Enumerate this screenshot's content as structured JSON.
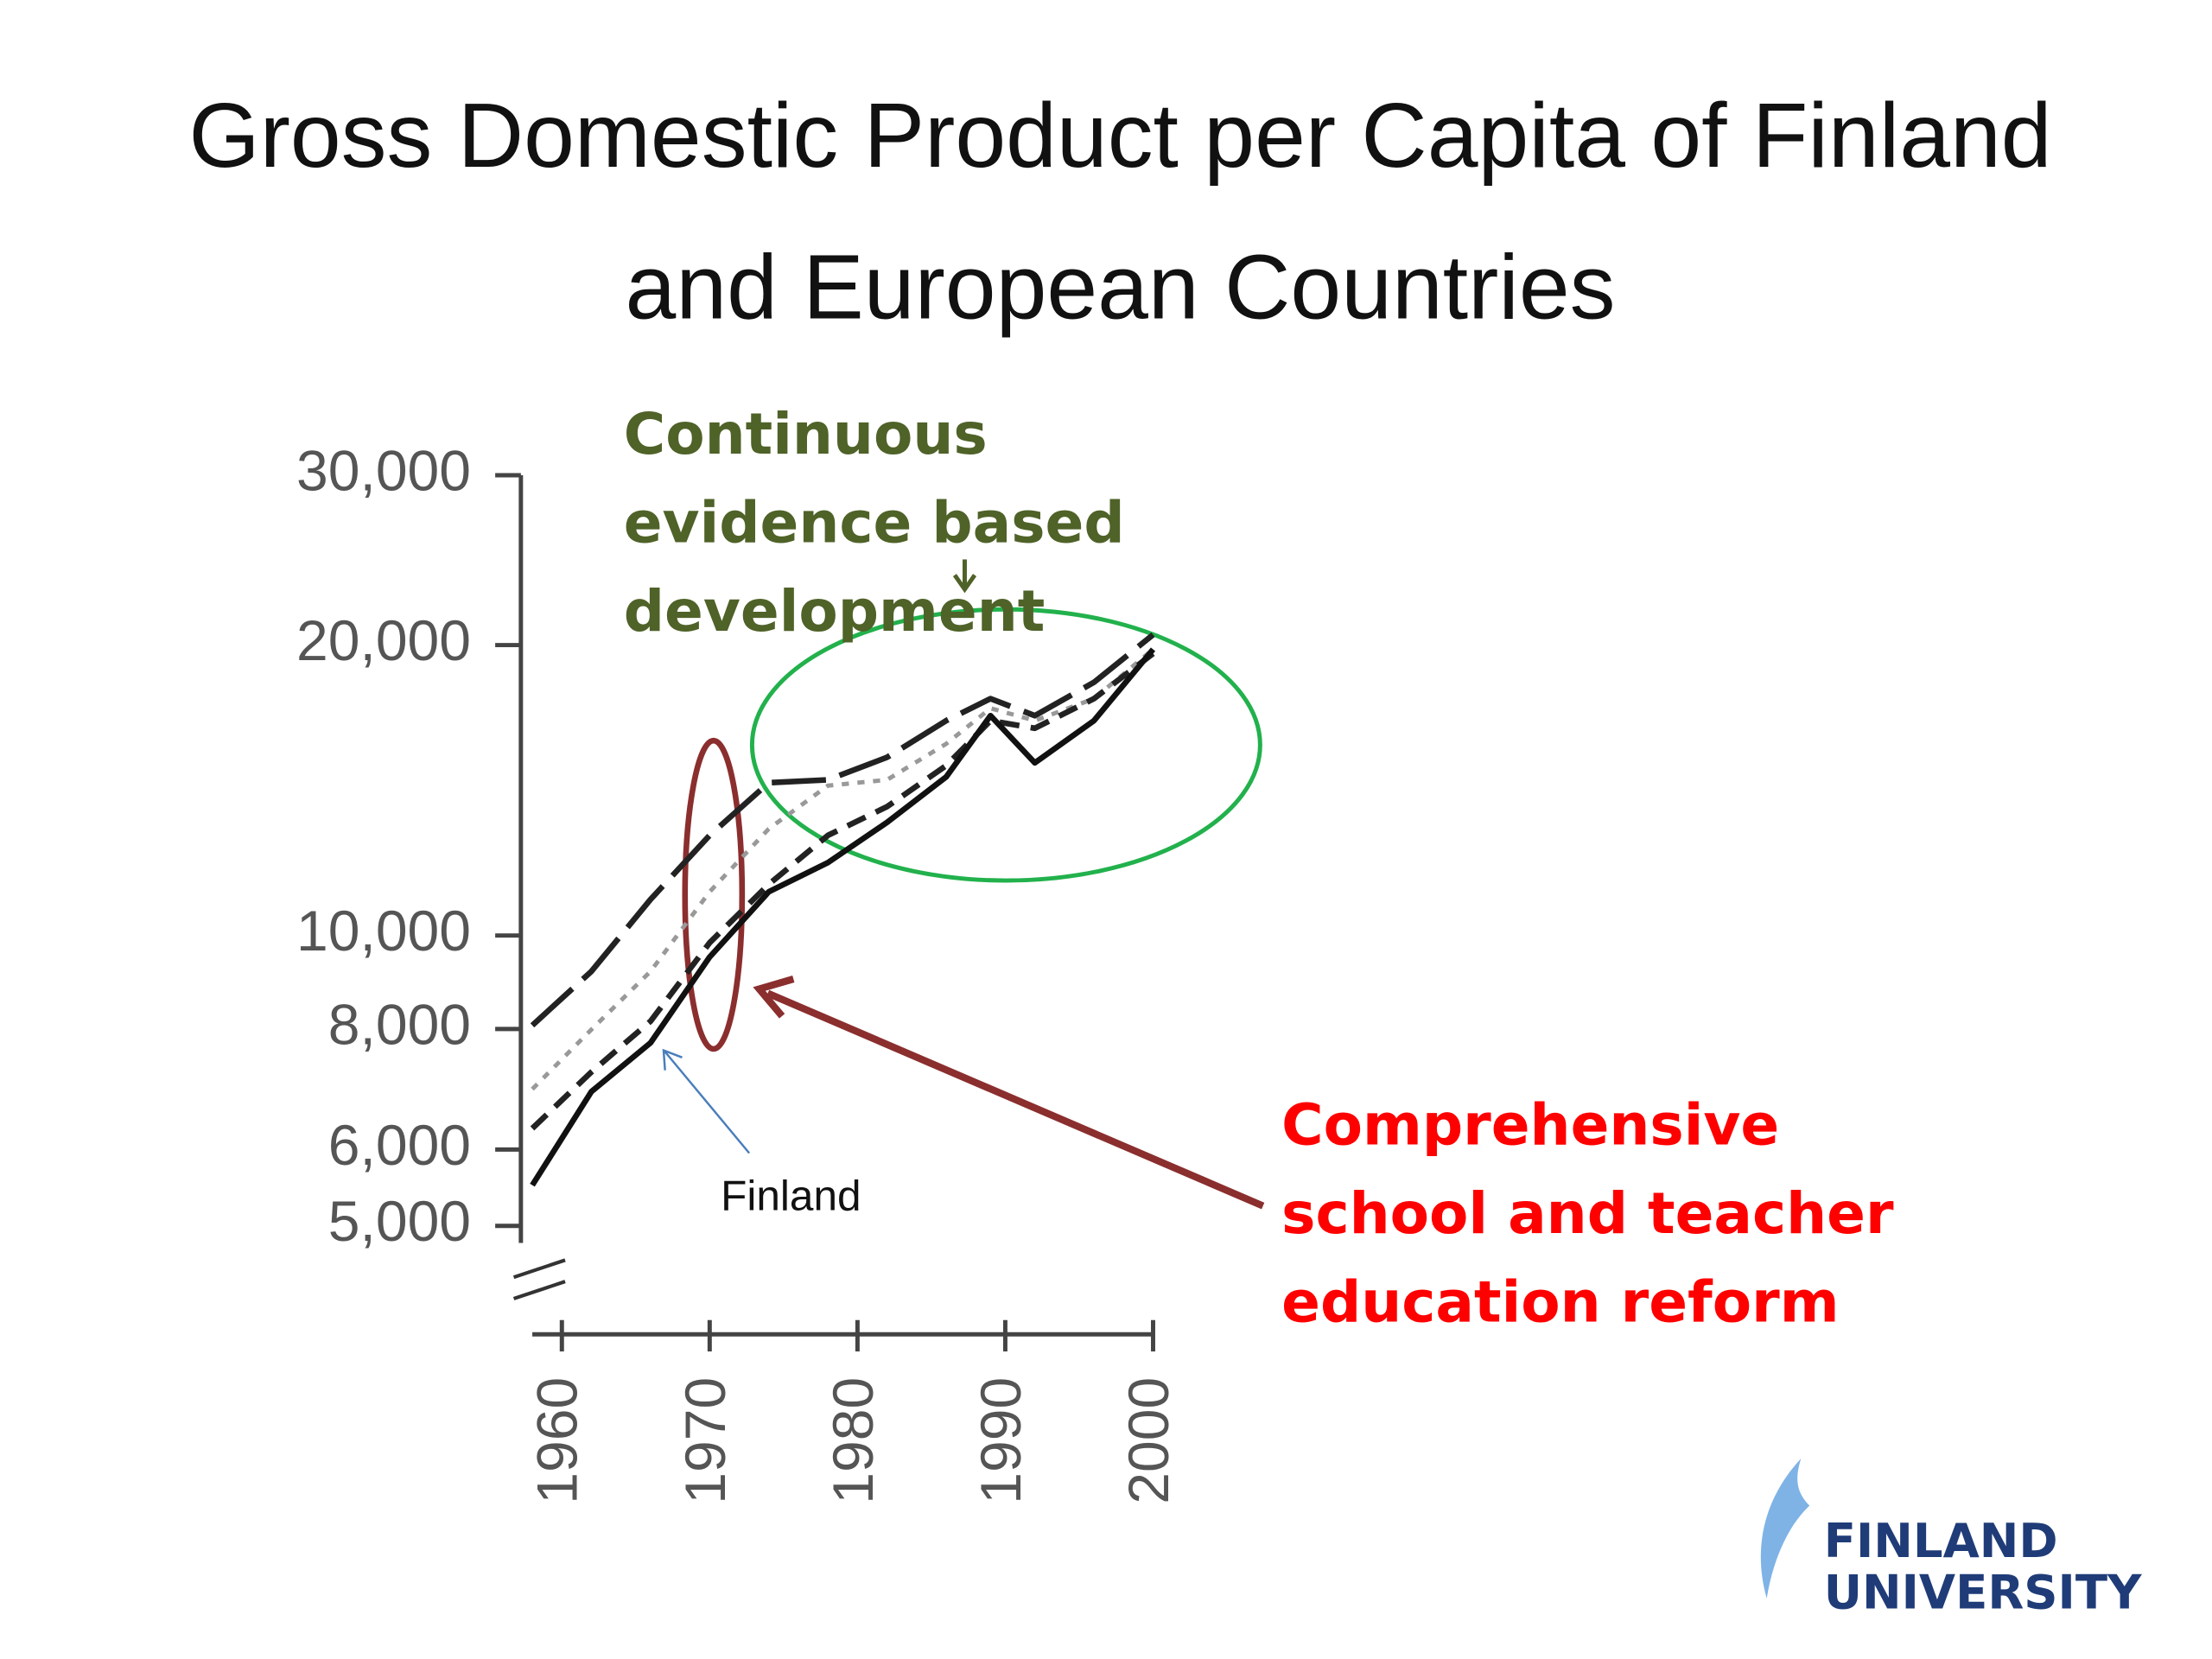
{
  "chart_data": {
    "type": "line",
    "title": "Gross Domestic Product per Capita of Finland and European Countries",
    "x": [
      1958,
      1962,
      1966,
      1970,
      1974,
      1978,
      1982,
      1986,
      1989,
      1992,
      1996,
      2000
    ],
    "series": [
      {
        "color": "#222222",
        "line_style": "long-dashed",
        "values": [
          8070,
          9180,
          10900,
          12700,
          14400,
          14500,
          15300,
          16700,
          17600,
          16900,
          18300,
          20500
        ]
      },
      {
        "color": "#999999",
        "line_style": "dotted",
        "values": [
          6930,
          7990,
          9180,
          11100,
          12900,
          14300,
          14500,
          15800,
          17200,
          16700,
          17600,
          19800
        ]
      },
      {
        "color": "#222222",
        "line_style": "dashed",
        "values": [
          6310,
          7220,
          8150,
          9830,
          11300,
          12700,
          13600,
          15000,
          16700,
          16400,
          17600,
          19600
        ]
      },
      {
        "name": "Finland",
        "color": "#111111",
        "line_style": "solid",
        "values": [
          5510,
          6890,
          7740,
          9500,
          11100,
          11900,
          13100,
          14600,
          16900,
          15100,
          16700,
          19800
        ]
      }
    ],
    "xlim": [
      1958,
      2000
    ],
    "xticks": [
      1960,
      1970,
      1980,
      1990,
      2000
    ],
    "ylim": [
      4800,
      30000
    ],
    "yticks": [
      {
        "value": 5000,
        "label": "5,000"
      },
      {
        "value": 6000,
        "label": "6,000"
      },
      {
        "value": 8000,
        "label": "8,000"
      },
      {
        "value": 10000,
        "label": "10,000"
      },
      {
        "value": 20000,
        "label": "20,000"
      },
      {
        "value": 30000,
        "label": "30,000"
      }
    ],
    "log_scale_y": true,
    "annotations": [
      "Continuous evidence based development",
      "Comprehensive school and teacher education reform"
    ]
  },
  "logo": [
    "FINLAND",
    "UNIVERSITY"
  ]
}
